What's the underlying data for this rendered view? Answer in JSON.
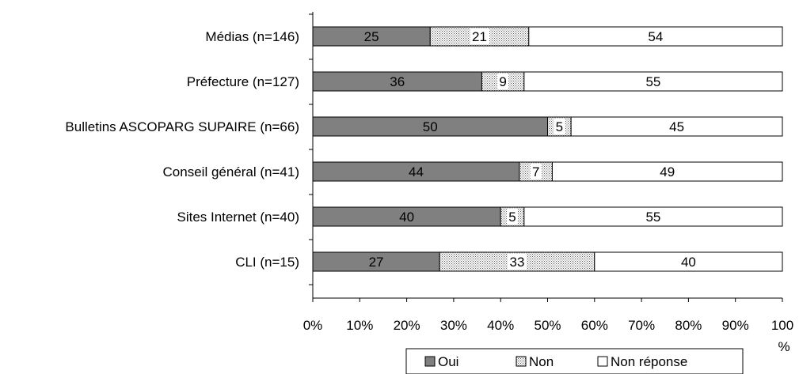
{
  "chart_data": {
    "type": "bar",
    "orientation": "horizontal",
    "stacked": true,
    "categories": [
      "Médias (n=146)",
      "Préfecture (n=127)",
      "Bulletins ASCOPARG SUPAIRE (n=66)",
      "Conseil général (n=41)",
      "Sites Internet (n=40)",
      "CLI (n=15)"
    ],
    "series": [
      {
        "name": "Oui",
        "values": [
          25,
          36,
          50,
          44,
          40,
          27
        ],
        "color": "#808080",
        "pattern": "solid"
      },
      {
        "name": "Non",
        "values": [
          21,
          9,
          5,
          7,
          5,
          33
        ],
        "color": "#c8c8c8",
        "pattern": "dotted"
      },
      {
        "name": "Non réponse",
        "values": [
          54,
          55,
          45,
          49,
          55,
          40
        ],
        "color": "#ffffff",
        "pattern": "none"
      }
    ],
    "xlim": [
      0,
      100
    ],
    "xticks": [
      "0%",
      "10%",
      "20%",
      "30%",
      "40%",
      "50%",
      "60%",
      "70%",
      "80%",
      "90%",
      "100"
    ],
    "xlabel": "%",
    "legend_position": "bottom",
    "grid": false
  }
}
